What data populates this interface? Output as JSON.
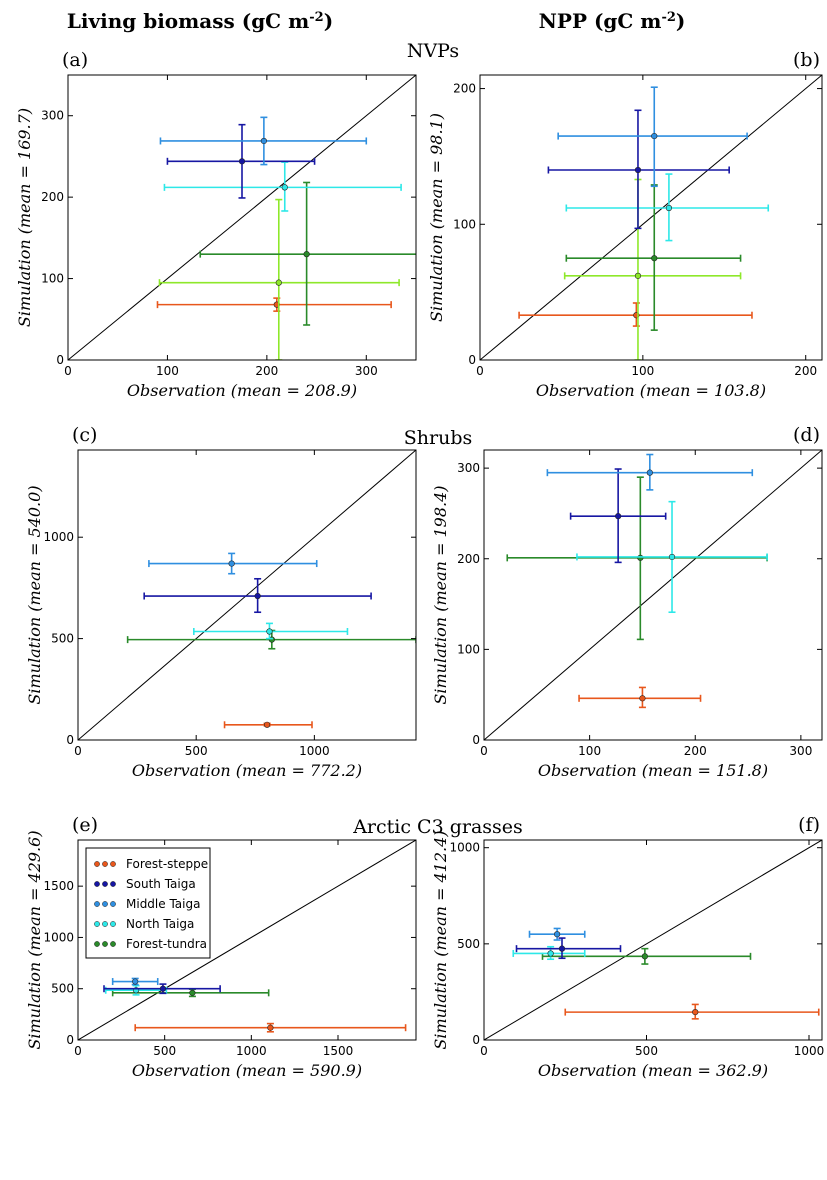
{
  "column_headers": [
    {
      "text": "Living biomass (gC m",
      "sup": "-2",
      "close": ")"
    },
    {
      "text": "NPP (gC m",
      "sup": "-2",
      "close": ")"
    }
  ],
  "row_titles": [
    "NVPs",
    "Shrubs",
    "Arctic C3 grasses"
  ],
  "colors": {
    "Forest-steppe": "#e8571c",
    "South Taiga": "#1717a3",
    "Middle Taiga": "#2f8fe0",
    "North Taiga": "#2de8e8",
    "Forest-tundra": "#2a8a2a",
    "NVPs-extra": "#8ee82a"
  },
  "legend": {
    "entries": [
      "Forest-steppe",
      "South Taiga",
      "Middle Taiga",
      "North Taiga",
      "Forest-tundra"
    ]
  },
  "chart_data": [
    {
      "panel": "(a)",
      "type": "scatter",
      "xlabel": "Observation (mean = 208.9)",
      "ylabel": "Simulation (mean = 169.7)",
      "xlim": [
        0,
        350
      ],
      "ylim": [
        0,
        350
      ],
      "xticks": [
        0,
        100,
        200,
        300
      ],
      "yticks": [
        0,
        100,
        200,
        300
      ],
      "identity_line": true,
      "points": [
        {
          "series": "Forest-steppe",
          "x": 210,
          "y": 68,
          "xerr": [
            90,
            325
          ],
          "yerr": [
            60,
            76
          ]
        },
        {
          "series": "NVPs-extra",
          "x": 212,
          "y": 95,
          "xerr": [
            92,
            333
          ],
          "yerr": [
            0,
            197
          ]
        },
        {
          "series": "Forest-tundra",
          "x": 240,
          "y": 130,
          "xerr": [
            133,
            407
          ],
          "yerr": [
            43,
            218
          ]
        },
        {
          "series": "North Taiga",
          "x": 218,
          "y": 212,
          "xerr": [
            97,
            335
          ],
          "yerr": [
            183,
            243
          ]
        },
        {
          "series": "South Taiga",
          "x": 175,
          "y": 244,
          "xerr": [
            100,
            248
          ],
          "yerr": [
            199,
            289
          ]
        },
        {
          "series": "Middle Taiga",
          "x": 197,
          "y": 269,
          "xerr": [
            93,
            300
          ],
          "yerr": [
            240,
            298
          ]
        }
      ]
    },
    {
      "panel": "(b)",
      "type": "scatter",
      "xlabel": "Observation (mean = 103.8)",
      "ylabel": "Simulation (mean = 98.1)",
      "xlim": [
        0,
        210
      ],
      "ylim": [
        0,
        210
      ],
      "xticks": [
        0,
        100,
        200
      ],
      "yticks": [
        0,
        100,
        200
      ],
      "identity_line": true,
      "points": [
        {
          "series": "Forest-steppe",
          "x": 96,
          "y": 33,
          "xerr": [
            24,
            167
          ],
          "yerr": [
            25,
            42
          ]
        },
        {
          "series": "NVPs-extra",
          "x": 97,
          "y": 62,
          "xerr": [
            52,
            160
          ],
          "yerr": [
            0,
            133
          ]
        },
        {
          "series": "Forest-tundra",
          "x": 107,
          "y": 75,
          "xerr": [
            53,
            160
          ],
          "yerr": [
            22,
            129
          ]
        },
        {
          "series": "North Taiga",
          "x": 116,
          "y": 112,
          "xerr": [
            53,
            177
          ],
          "yerr": [
            88,
            137
          ]
        },
        {
          "series": "South Taiga",
          "x": 97,
          "y": 140,
          "xerr": [
            42,
            153
          ],
          "yerr": [
            97,
            184
          ]
        },
        {
          "series": "Middle Taiga",
          "x": 107,
          "y": 165,
          "xerr": [
            48,
            164
          ],
          "yerr": [
            128,
            201
          ]
        }
      ]
    },
    {
      "panel": "(c)",
      "type": "scatter",
      "xlabel": "Observation (mean = 772.2)",
      "ylabel": "Simulation (mean = 540.0)",
      "xlim": [
        0,
        1430
      ],
      "ylim": [
        0,
        1430
      ],
      "xticks": [
        0,
        500,
        1000
      ],
      "yticks": [
        0,
        500,
        1000
      ],
      "identity_line": true,
      "points": [
        {
          "series": "Forest-steppe",
          "x": 800,
          "y": 75,
          "xerr": [
            620,
            990
          ],
          "yerr": [
            70,
            82
          ]
        },
        {
          "series": "Forest-tundra",
          "x": 820,
          "y": 495,
          "xerr": [
            210,
            1430
          ],
          "yerr": [
            450,
            540
          ]
        },
        {
          "series": "North Taiga",
          "x": 810,
          "y": 535,
          "xerr": [
            490,
            1140
          ],
          "yerr": [
            500,
            575
          ]
        },
        {
          "series": "South Taiga",
          "x": 760,
          "y": 710,
          "xerr": [
            280,
            1240
          ],
          "yerr": [
            630,
            795
          ]
        },
        {
          "series": "Middle Taiga",
          "x": 650,
          "y": 870,
          "xerr": [
            300,
            1010
          ],
          "yerr": [
            820,
            920
          ]
        }
      ]
    },
    {
      "panel": "(d)",
      "type": "scatter",
      "xlabel": "Observation (mean = 151.8)",
      "ylabel": "Simulation (mean = 198.4)",
      "xlim": [
        0,
        320
      ],
      "ylim": [
        0,
        320
      ],
      "xticks": [
        0,
        100,
        200,
        300
      ],
      "yticks": [
        0,
        100,
        200,
        300
      ],
      "identity_line": true,
      "points": [
        {
          "series": "Forest-steppe",
          "x": 150,
          "y": 46,
          "xerr": [
            90,
            205
          ],
          "yerr": [
            36,
            58
          ]
        },
        {
          "series": "Forest-tundra",
          "x": 148,
          "y": 201,
          "xerr": [
            22,
            268
          ],
          "yerr": [
            111,
            290
          ]
        },
        {
          "series": "North Taiga",
          "x": 178,
          "y": 202,
          "xerr": [
            88,
            268
          ],
          "yerr": [
            141,
            263
          ]
        },
        {
          "series": "South Taiga",
          "x": 127,
          "y": 247,
          "xerr": [
            82,
            172
          ],
          "yerr": [
            196,
            299
          ]
        },
        {
          "series": "Middle Taiga",
          "x": 157,
          "y": 295,
          "xerr": [
            60,
            254
          ],
          "yerr": [
            276,
            315
          ]
        }
      ]
    },
    {
      "panel": "(e)",
      "type": "scatter",
      "xlabel": "Observation (mean = 590.9)",
      "ylabel": "Simulation (mean = 429.6)",
      "xlim": [
        0,
        1950
      ],
      "ylim": [
        0,
        1950
      ],
      "xticks": [
        0,
        500,
        1000,
        1500
      ],
      "yticks": [
        0,
        500,
        1000,
        1500
      ],
      "identity_line": true,
      "points": [
        {
          "series": "Forest-steppe",
          "x": 1110,
          "y": 120,
          "xerr": [
            330,
            1890
          ],
          "yerr": [
            80,
            160
          ]
        },
        {
          "series": "Forest-tundra",
          "x": 660,
          "y": 460,
          "xerr": [
            200,
            1100
          ],
          "yerr": [
            425,
            495
          ]
        },
        {
          "series": "North Taiga",
          "x": 335,
          "y": 485,
          "xerr": [
            160,
            510
          ],
          "yerr": [
            440,
            530
          ]
        },
        {
          "series": "South Taiga",
          "x": 490,
          "y": 500,
          "xerr": [
            150,
            820
          ],
          "yerr": [
            455,
            545
          ]
        },
        {
          "series": "Middle Taiga",
          "x": 330,
          "y": 570,
          "xerr": [
            200,
            460
          ],
          "yerr": [
            540,
            600
          ]
        }
      ]
    },
    {
      "panel": "(f)",
      "type": "scatter",
      "xlabel": "Observation (mean = 362.9)",
      "ylabel": "Simulation (mean = 412.4)",
      "xlim": [
        0,
        1040
      ],
      "ylim": [
        0,
        1040
      ],
      "xticks": [
        0,
        500,
        1000
      ],
      "yticks": [
        0,
        500,
        1000
      ],
      "identity_line": true,
      "points": [
        {
          "series": "Forest-steppe",
          "x": 650,
          "y": 145,
          "xerr": [
            250,
            1030
          ],
          "yerr": [
            110,
            185
          ]
        },
        {
          "series": "Forest-tundra",
          "x": 495,
          "y": 435,
          "xerr": [
            180,
            820
          ],
          "yerr": [
            395,
            475
          ]
        },
        {
          "series": "North Taiga",
          "x": 205,
          "y": 450,
          "xerr": [
            90,
            310
          ],
          "yerr": [
            420,
            485
          ]
        },
        {
          "series": "South Taiga",
          "x": 240,
          "y": 475,
          "xerr": [
            100,
            420
          ],
          "yerr": [
            425,
            530
          ]
        },
        {
          "series": "Middle Taiga",
          "x": 225,
          "y": 550,
          "xerr": [
            140,
            310
          ],
          "yerr": [
            520,
            580
          ]
        }
      ]
    }
  ]
}
